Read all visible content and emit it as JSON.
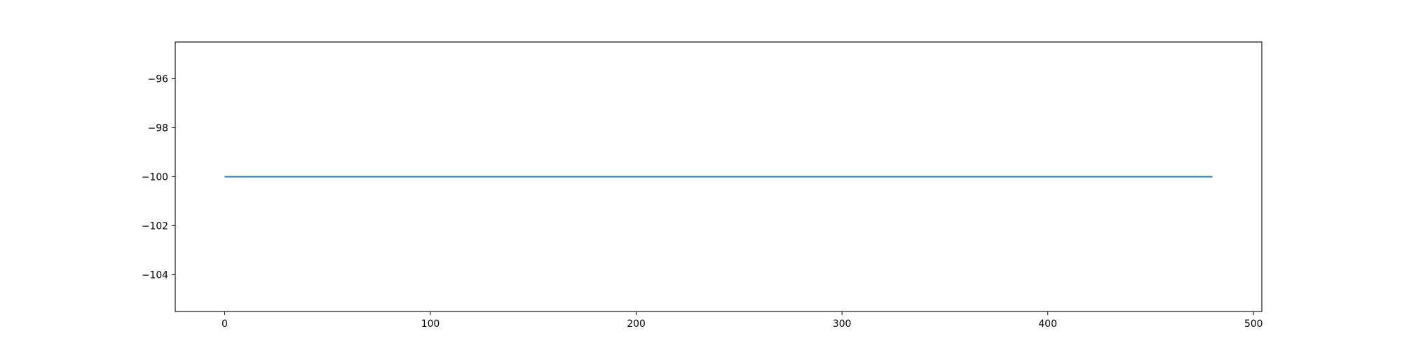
{
  "chart_data": {
    "type": "line",
    "title": "",
    "xlabel": "",
    "ylabel": "",
    "xlim": [
      -24,
      504
    ],
    "ylim": [
      -105.5,
      -94.5
    ],
    "grid": false,
    "x_ticks": [
      {
        "value": 0,
        "label": "0"
      },
      {
        "value": 100,
        "label": "100"
      },
      {
        "value": 200,
        "label": "200"
      },
      {
        "value": 300,
        "label": "300"
      },
      {
        "value": 400,
        "label": "400"
      },
      {
        "value": 500,
        "label": "500"
      }
    ],
    "y_ticks": [
      {
        "value": -96,
        "label": "−96"
      },
      {
        "value": -98,
        "label": "−98"
      },
      {
        "value": -100,
        "label": "−100"
      },
      {
        "value": -102,
        "label": "−102"
      },
      {
        "value": -104,
        "label": "−104"
      }
    ],
    "series": [
      {
        "color": "#1f77b4",
        "x": [
          0,
          480
        ],
        "y": [
          -100,
          -100
        ]
      }
    ]
  }
}
